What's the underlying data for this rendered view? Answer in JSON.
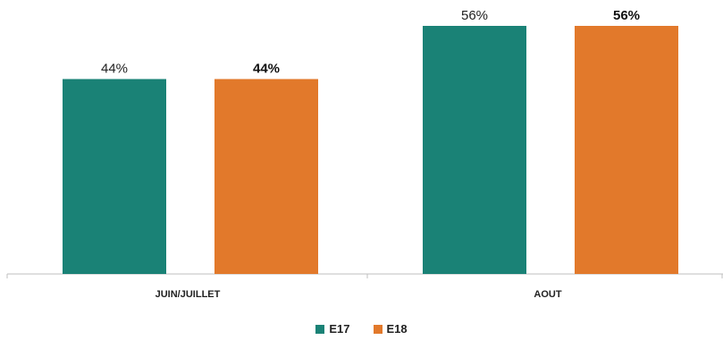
{
  "chart_data": {
    "type": "bar",
    "categories": [
      "JUIN/JUILLET",
      "AOUT"
    ],
    "series": [
      {
        "name": "E17",
        "values": [
          44,
          56
        ],
        "labels": [
          "44%",
          "56%"
        ],
        "color": "#1a8276",
        "label_style": "normal"
      },
      {
        "name": "E18",
        "values": [
          44,
          56
        ],
        "labels": [
          "44%",
          "56%"
        ],
        "color": "#e2792b",
        "label_style": "bold"
      }
    ],
    "ylim": [
      0,
      60
    ],
    "value_unit": "%",
    "grid": false,
    "legend_position": "bottom"
  }
}
